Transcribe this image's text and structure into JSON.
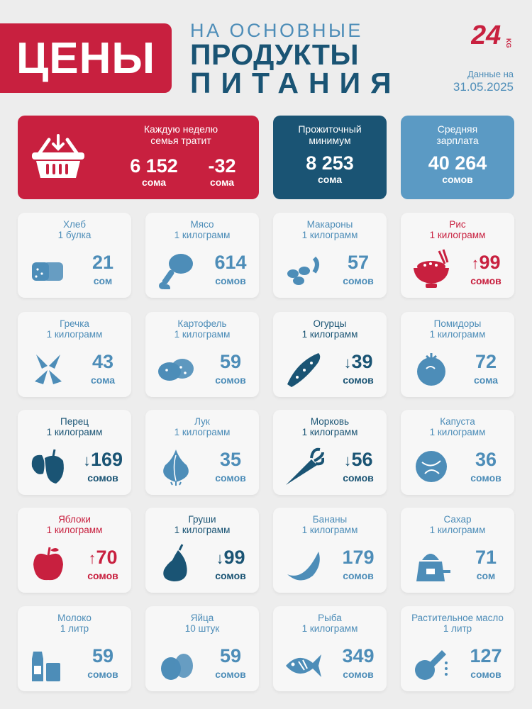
{
  "header": {
    "title": "ЦЕНЫ",
    "subtitle_line1": "НА ОСНОВНЫЕ",
    "subtitle_line2": "ПРОДУКТЫ",
    "subtitle_line3": "ПИТАНИЯ",
    "logo": "24",
    "logo_suffix": "KG",
    "date_label": "Данные на",
    "date_value": "31.05.2025"
  },
  "summary": {
    "weekly": {
      "label_line1": "Каждую неделю",
      "label_line2": "семья тратит",
      "value": "6 152",
      "unit": "сома",
      "change": "-32",
      "change_unit": "сома",
      "icon": "basket-icon",
      "color": "#c8203f"
    },
    "minimum": {
      "label_line1": "Прожиточный",
      "label_line2": "минимум",
      "value": "8 253",
      "unit": "сома",
      "color": "#1a5474"
    },
    "salary": {
      "label_line1": "Средняя",
      "label_line2": "зарплата",
      "value": "40 264",
      "unit": "сомов",
      "color": "#5b9ac4"
    }
  },
  "products": [
    {
      "name": "Хлеб",
      "qty": "1 булка",
      "value": "21",
      "unit": "сом",
      "trend": "",
      "style": "light",
      "icon": "bread-icon"
    },
    {
      "name": "Мясо",
      "qty": "1 килограмм",
      "value": "614",
      "unit": "сомов",
      "trend": "",
      "style": "light",
      "icon": "meat-icon"
    },
    {
      "name": "Макароны",
      "qty": "1 килограмм",
      "value": "57",
      "unit": "сомов",
      "trend": "",
      "style": "light",
      "icon": "pasta-icon"
    },
    {
      "name": "Рис",
      "qty": "1 килограмм",
      "value": "99",
      "unit": "сомов",
      "trend": "↑",
      "style": "red",
      "icon": "rice-bowl-icon"
    },
    {
      "name": "Гречка",
      "qty": "1 килограмм",
      "value": "43",
      "unit": "сома",
      "trend": "",
      "style": "light",
      "icon": "buckwheat-icon"
    },
    {
      "name": "Картофель",
      "qty": "1 килограмм",
      "value": "59",
      "unit": "сомов",
      "trend": "",
      "style": "light",
      "icon": "potato-icon"
    },
    {
      "name": "Огурцы",
      "qty": "1 килограмм",
      "value": "39",
      "unit": "сомов",
      "trend": "↓",
      "style": "dark",
      "icon": "cucumber-icon"
    },
    {
      "name": "Помидоры",
      "qty": "1 килограмм",
      "value": "72",
      "unit": "сома",
      "trend": "",
      "style": "light",
      "icon": "tomato-icon"
    },
    {
      "name": "Перец",
      "qty": "1 килограмм",
      "value": "169",
      "unit": "сомов",
      "trend": "↓",
      "style": "dark",
      "icon": "pepper-icon"
    },
    {
      "name": "Лук",
      "qty": "1 килограмм",
      "value": "35",
      "unit": "сомов",
      "trend": "",
      "style": "light",
      "icon": "onion-icon"
    },
    {
      "name": "Морковь",
      "qty": "1 килограмм",
      "value": "56",
      "unit": "сомов",
      "trend": "↓",
      "style": "dark",
      "icon": "carrot-icon"
    },
    {
      "name": "Капуста",
      "qty": "1 килограмм",
      "value": "36",
      "unit": "сомов",
      "trend": "",
      "style": "light",
      "icon": "cabbage-icon"
    },
    {
      "name": "Яблоки",
      "qty": "1 килограмм",
      "value": "70",
      "unit": "сомов",
      "trend": "↑",
      "style": "red",
      "icon": "apple-icon"
    },
    {
      "name": "Груши",
      "qty": "1 килограмм",
      "value": "99",
      "unit": "сомов",
      "trend": "↓",
      "style": "dark",
      "icon": "pear-icon"
    },
    {
      "name": "Бананы",
      "qty": "1 килограмм",
      "value": "179",
      "unit": "сомов",
      "trend": "",
      "style": "light",
      "icon": "banana-icon"
    },
    {
      "name": "Сахар",
      "qty": "1 килограмм",
      "value": "71",
      "unit": "сом",
      "trend": "",
      "style": "light",
      "icon": "sugar-icon"
    },
    {
      "name": "Молоко",
      "qty": "1 литр",
      "value": "59",
      "unit": "сомов",
      "trend": "",
      "style": "light",
      "icon": "milk-icon"
    },
    {
      "name": "Яйца",
      "qty": "10 штук",
      "value": "59",
      "unit": "сомов",
      "trend": "",
      "style": "light",
      "icon": "eggs-icon"
    },
    {
      "name": "Рыба",
      "qty": "1 килограмм",
      "value": "349",
      "unit": "сомов",
      "trend": "",
      "style": "light",
      "icon": "fish-icon"
    },
    {
      "name": "Растительное масло",
      "qty": "1 литр",
      "value": "127",
      "unit": "сомов",
      "trend": "",
      "style": "light",
      "icon": "oil-icon"
    }
  ]
}
